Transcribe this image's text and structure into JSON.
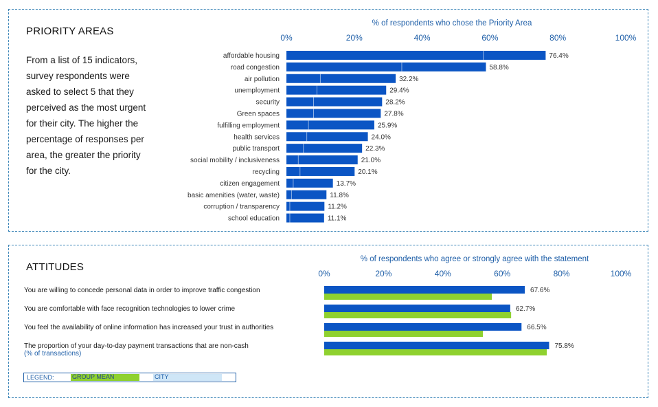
{
  "priority": {
    "heading": "PRIORITY AREAS",
    "description": "From a list of 15 indicators, survey respondents were asked to select 5 that they perceived as the most urgent for their city. The higher the percentage of responses per area, the greater the priority for the city."
  },
  "attitudes": {
    "heading": "ATTITUDES"
  },
  "legend": {
    "label": "LEGEND:",
    "group_mean": "GROUP MEAN",
    "city": "CITY"
  },
  "colors": {
    "city": "#0b55c4",
    "group_mean": "#8fd12f",
    "axis_text": "#1f5fa8",
    "border": "#3d86b8"
  },
  "chart_data": [
    {
      "type": "bar",
      "orientation": "horizontal",
      "title": "% of respondents who chose the Priority Area",
      "xlim": [
        0,
        100
      ],
      "x_ticks": [
        "0%",
        "20%",
        "40%",
        "60%",
        "80%",
        "100%"
      ],
      "categories": [
        "affordable housing",
        "road congestion",
        "air pollution",
        "unemployment",
        "security",
        "Green spaces",
        "fulfilling employment",
        "health services",
        "public transport",
        "social mobility / inclusiveness",
        "recycling",
        "citizen engagement",
        "basic amenities (water, waste)",
        "corruption / transparency",
        "school education"
      ],
      "series": [
        {
          "name": "CITY",
          "values": [
            76.4,
            58.8,
            32.2,
            29.4,
            28.2,
            27.8,
            25.9,
            24.0,
            22.3,
            21.0,
            20.1,
            13.7,
            11.8,
            11.2,
            11.1
          ]
        },
        {
          "name": "GROUP MEAN",
          "values": [
            58,
            34,
            10,
            9,
            8,
            8,
            6.5,
            6,
            5,
            3.5,
            4,
            2,
            1.5,
            1,
            1
          ]
        }
      ],
      "labels": [
        "76.4%",
        "58.8%",
        "32.2%",
        "29.4%",
        "28.2%",
        "27.8%",
        "25.9%",
        "24.0%",
        "22.3%",
        "21.0%",
        "20.1%",
        "13.7%",
        "11.8%",
        "11.2%",
        "11.1%"
      ]
    },
    {
      "type": "bar",
      "orientation": "horizontal",
      "title": "% of respondents who agree or strongly agree with the statement",
      "xlim": [
        0,
        100
      ],
      "x_ticks": [
        "0%",
        "20%",
        "40%",
        "60%",
        "80%",
        "100%"
      ],
      "categories": [
        {
          "text": "You are willing to concede personal data in order to improve traffic congestion",
          "sub": ""
        },
        {
          "text": "You are comfortable with face recognition technologies to lower crime",
          "sub": ""
        },
        {
          "text": "You feel the availability of online information has increased your trust in authorities",
          "sub": ""
        },
        {
          "text": "The proportion of your day-to-day payment transactions that are non-cash",
          "sub": "(% of transactions)"
        }
      ],
      "series": [
        {
          "name": "CITY",
          "values": [
            67.6,
            62.7,
            66.5,
            75.8
          ]
        },
        {
          "name": "GROUP MEAN",
          "values": [
            56.5,
            63.0,
            53.5,
            75.0
          ]
        }
      ],
      "labels": [
        "67.6%",
        "62.7%",
        "66.5%",
        "75.8%"
      ]
    }
  ]
}
